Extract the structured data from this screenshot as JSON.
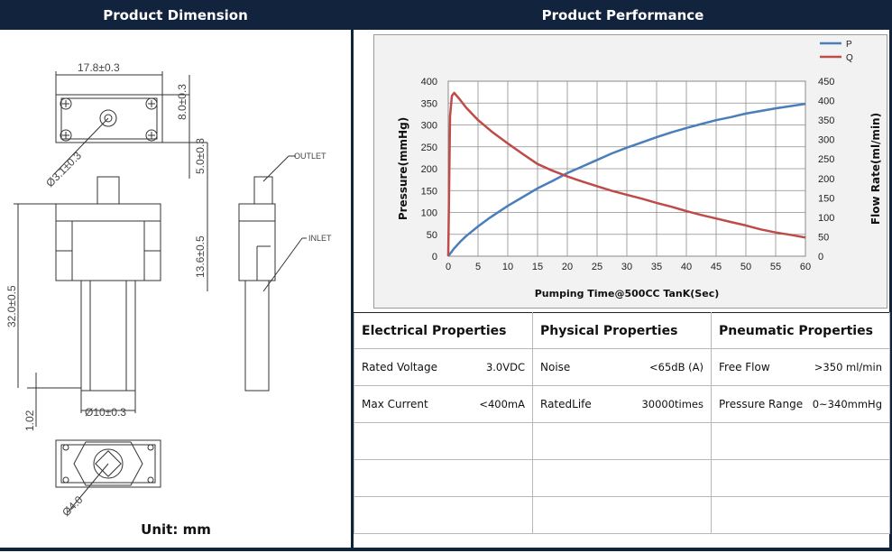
{
  "headers": {
    "left": "Product Dimension",
    "right": "Product Performance"
  },
  "dimension": {
    "width": "17.8±0.3",
    "top_height": "8.0±0.3",
    "mid_height": "5.0±0.3",
    "port_dia": "Ø3.1±0.3",
    "inlet_height": "13.6±0.5",
    "body_length": "32.0±0.5",
    "bottom_gap": "1.02",
    "shaft_dia": "Ø10±0.3",
    "bottom_dia": "Ø4.0",
    "outlet_label": "OUTLET",
    "inlet_label": "INLET",
    "unit": "Unit: mm"
  },
  "chart_data": {
    "type": "line",
    "xlabel": "Pumping Time@500CC TanK(Sec)",
    "ylabel": "Pressure(mmHg)",
    "y2label": "Flow Rate(ml/min)",
    "xlim": [
      0,
      60
    ],
    "ylim": [
      0,
      400
    ],
    "y2lim": [
      0,
      450
    ],
    "xticks": [
      0,
      5,
      10,
      15,
      20,
      25,
      30,
      35,
      40,
      45,
      50,
      55,
      60
    ],
    "yticks": [
      0,
      50,
      100,
      150,
      200,
      250,
      300,
      350,
      400
    ],
    "y2ticks": [
      0,
      50,
      100,
      150,
      200,
      250,
      300,
      350,
      400,
      450
    ],
    "grid": true,
    "legend": "top-right",
    "series": [
      {
        "name": "P",
        "axis": "left",
        "color": "#4a7ebb",
        "x": [
          0,
          1,
          2,
          3,
          5,
          7,
          10,
          12.5,
          15,
          17.5,
          20,
          22.5,
          25,
          27.5,
          30,
          32.5,
          35,
          37.5,
          40,
          42.5,
          45,
          47.5,
          50,
          52.5,
          55,
          57.5,
          60
        ],
        "y": [
          0,
          18,
          33,
          46,
          68,
          88,
          115,
          135,
          155,
          172,
          190,
          205,
          220,
          235,
          248,
          260,
          272,
          283,
          293,
          302,
          311,
          318,
          326,
          332,
          338,
          343,
          348
        ]
      },
      {
        "name": "Q",
        "axis": "right",
        "color": "#be4b48",
        "x": [
          0,
          0.3,
          0.6,
          1,
          2,
          3,
          5,
          7.5,
          10,
          12.5,
          15,
          17.5,
          20,
          22.5,
          25,
          27.5,
          30,
          32.5,
          35,
          37.5,
          40,
          42.5,
          45,
          47.5,
          50,
          52.5,
          55,
          57.5,
          60
        ],
        "y": [
          0,
          360,
          412,
          420,
          402,
          382,
          350,
          318,
          290,
          263,
          237,
          220,
          205,
          192,
          180,
          168,
          158,
          148,
          137,
          127,
          116,
          106,
          97,
          88,
          79,
          69,
          61,
          55,
          48
        ]
      }
    ]
  },
  "table": {
    "columns": [
      "Electrical Properties",
      "Physical Properties",
      "Pneumatic Properties"
    ],
    "rows": [
      [
        {
          "label": "Rated Voltage",
          "value": "3.0VDC"
        },
        {
          "label": "Noise",
          "value": "<65dB (A)"
        },
        {
          "label": "Free Flow",
          "value": ">350 ml/min"
        }
      ],
      [
        {
          "label": "Max Current",
          "value": "<400mA"
        },
        {
          "label": "RatedLife",
          "value": "30000times"
        },
        {
          "label": "Pressure Range",
          "value": "0~340mmHg"
        }
      ],
      [
        {
          "label": "",
          "value": ""
        },
        {
          "label": "",
          "value": ""
        },
        {
          "label": "",
          "value": ""
        }
      ],
      [
        {
          "label": "",
          "value": ""
        },
        {
          "label": "",
          "value": ""
        },
        {
          "label": "",
          "value": ""
        }
      ],
      [
        {
          "label": "",
          "value": ""
        },
        {
          "label": "",
          "value": ""
        },
        {
          "label": "",
          "value": ""
        }
      ]
    ]
  }
}
